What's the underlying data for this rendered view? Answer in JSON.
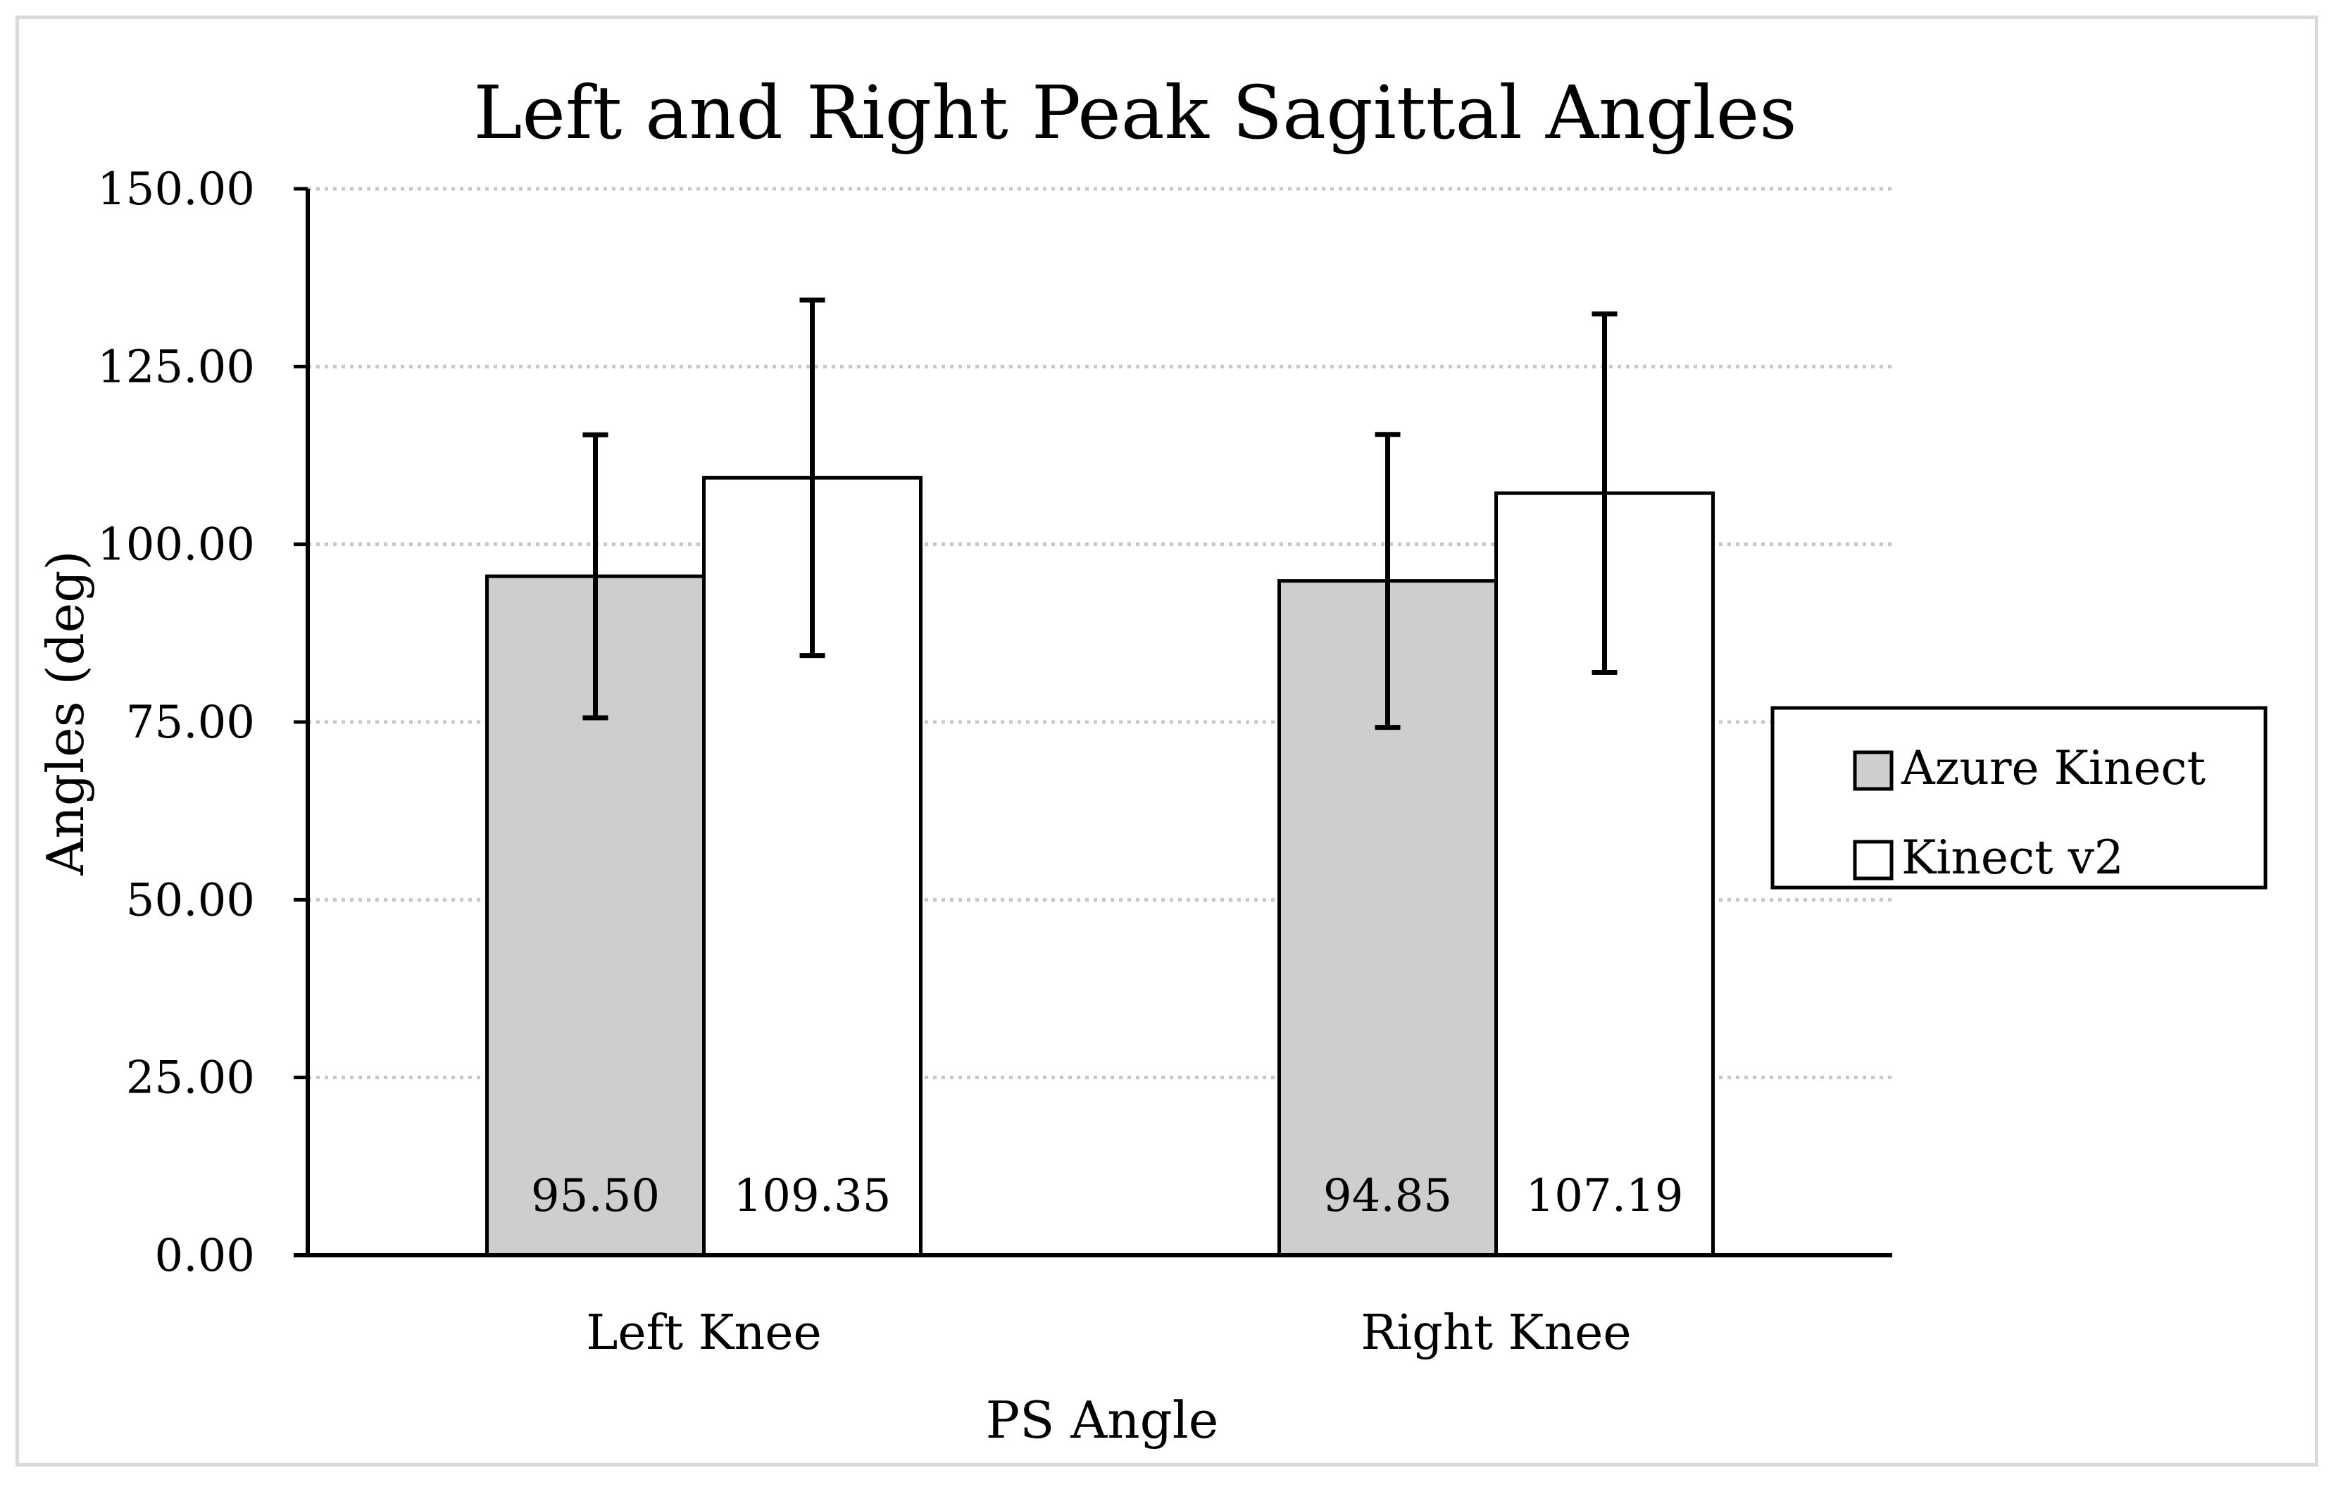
{
  "chart_data": {
    "type": "bar",
    "title": "Left and Right Peak Sagittal Angles",
    "xlabel": "PS Angle",
    "ylabel": "Angles (deg)",
    "categories": [
      "Left Knee",
      "Right Knee"
    ],
    "ylim": [
      0,
      150
    ],
    "yticks": [
      0,
      25,
      50,
      75,
      100,
      125,
      150
    ],
    "ytick_labels": [
      "0.00",
      "25.00",
      "50.00",
      "75.00",
      "100.00",
      "125.00",
      "150.00"
    ],
    "grid": true,
    "legend_position": "right",
    "series": [
      {
        "name": "Azure Kinect",
        "color": "#d0cecd",
        "values": [
          95.5,
          94.85
        ],
        "value_labels": [
          "95.50",
          "94.85"
        ],
        "error": [
          19.9,
          20.6
        ]
      },
      {
        "name": "Kinect v2",
        "color": "#ffffff",
        "values": [
          109.35,
          107.19
        ],
        "value_labels": [
          "109.35",
          "107.19"
        ],
        "error": [
          25.0,
          25.2
        ]
      }
    ]
  }
}
